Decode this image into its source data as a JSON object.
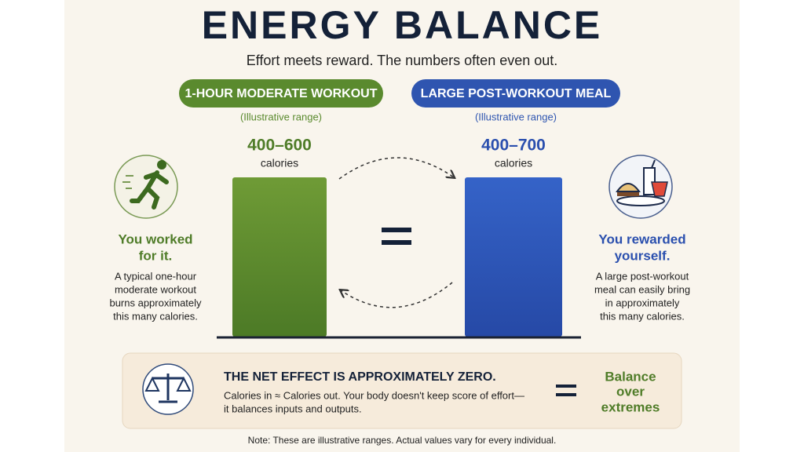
{
  "header": {
    "title": "ENERGY BALANCE",
    "subtitle": "Effort meets reward. The numbers often even out."
  },
  "left": {
    "label": "1-HOUR MODERATE WORKOUT",
    "note": "(Illustrative range)",
    "range": "400–600",
    "unit": "calories",
    "heading": [
      "You worked",
      "for it."
    ],
    "description": [
      "A typical one-hour",
      "moderate workout",
      "burns approximately",
      "this many calories."
    ]
  },
  "right": {
    "label": "LARGE POST-WORKOUT MEAL",
    "note": "(Illustrative range)",
    "range": "400–700",
    "unit": "calories",
    "heading": [
      "You rewarded",
      "yourself."
    ],
    "description": [
      "A large post-workout",
      "meal can easily bring",
      "in approximately",
      "this many calories."
    ]
  },
  "summary": {
    "heading": "THE NET EFFECT IS APPROXIMATELY ZERO.",
    "body": [
      "Calories in ≈ Calories out. Your body doesn't keep score of effort—",
      "it balances inputs and outputs."
    ],
    "tagline": [
      "Balance",
      "over",
      "extremes"
    ]
  },
  "note": "Note: These are illustrative ranges. Actual values vary for every individual."
}
